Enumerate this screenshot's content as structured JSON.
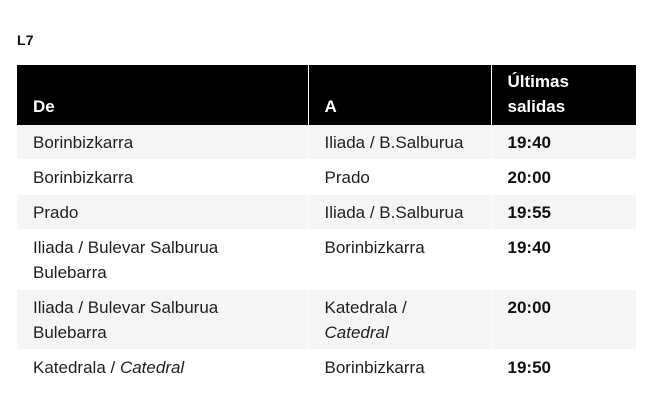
{
  "line_label": "L7",
  "headers": {
    "from": "De",
    "to": "A",
    "time_line1": "Últimas",
    "time_line2": "salidas"
  },
  "rows": [
    {
      "from": "Borinbizkarra",
      "from_line2": "",
      "from_italic": "",
      "to": "Iliada / B.Salburua",
      "to_italic": "",
      "time": "19:40"
    },
    {
      "from": "Borinbizkarra",
      "from_line2": "",
      "from_italic": "",
      "to": "Prado",
      "to_italic": "",
      "time": "20:00"
    },
    {
      "from": "Prado",
      "from_line2": "",
      "from_italic": "",
      "to": "Iliada / B.Salburua",
      "to_italic": "",
      "time": "19:55"
    },
    {
      "from": "Iliada / Bulevar Salburua",
      "from_line2": "Bulebarra",
      "from_italic": "",
      "to": "Borinbizkarra",
      "to_italic": "",
      "time": "19:40"
    },
    {
      "from": "Iliada / Bulevar Salburua",
      "from_line2": "Bulebarra",
      "from_italic": "",
      "to": "Katedrala /",
      "to_italic": "Catedral",
      "time": "20:00"
    },
    {
      "from": "Katedrala / ",
      "from_line2": "",
      "from_italic": "Catedral",
      "to": "Borinbizkarra",
      "to_italic": "",
      "time": "19:50"
    }
  ]
}
